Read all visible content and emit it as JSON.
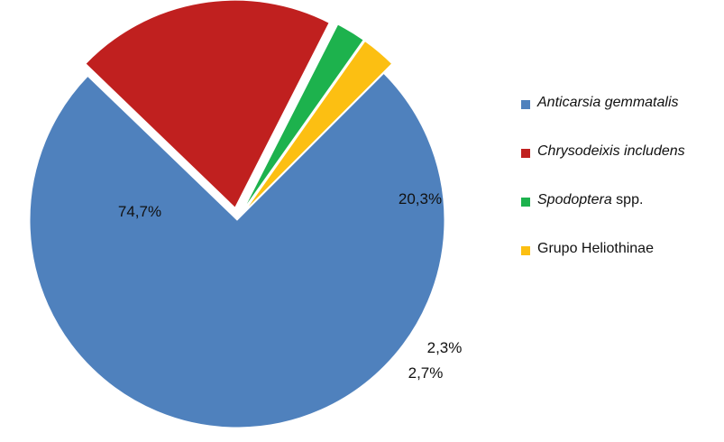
{
  "chart_data": {
    "type": "pie",
    "title": "",
    "slices": [
      {
        "name_italic": "Anticarsia gemmatalis",
        "name_rest": "",
        "value": 74.7,
        "label": "74,7%",
        "color": "#4F81BD"
      },
      {
        "name_italic": "Chrysodeixis includens",
        "name_rest": "",
        "value": 20.3,
        "label": "20,3%",
        "color": "#C0201F"
      },
      {
        "name_italic": "Spodoptera",
        "name_rest": " spp.",
        "value": 2.3,
        "label": "2,3%",
        "color": "#1DB24D"
      },
      {
        "name_italic": "",
        "name_rest": "Grupo Heliothinae",
        "value": 2.7,
        "label": "2,7%",
        "color": "#FCBF12"
      }
    ],
    "legend_position": "right"
  }
}
